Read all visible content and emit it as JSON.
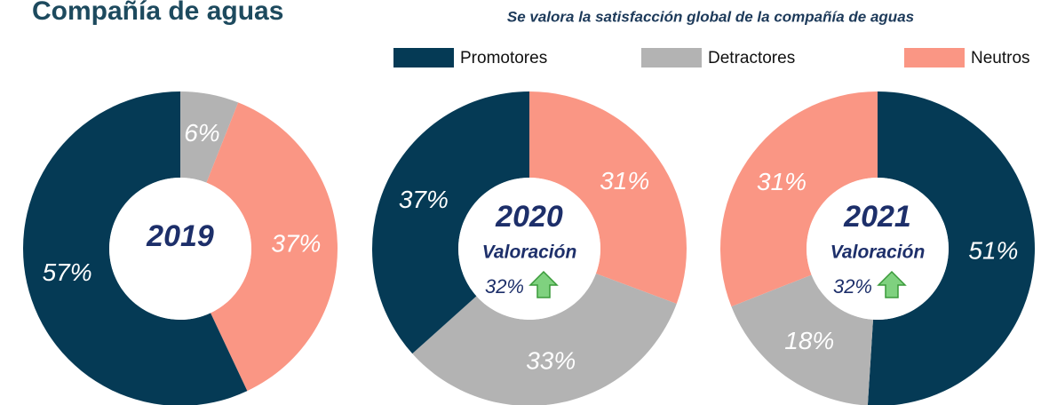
{
  "header": {
    "title": "Compañía de aguas",
    "subtitle": "Se valora la satisfacción global de la compañía de aguas"
  },
  "legend": [
    {
      "name": "Promotores",
      "color": "#053a55"
    },
    {
      "name": "Detractores",
      "color": "#b3b3b3"
    },
    {
      "name": "Neutros",
      "color": "#fa9684"
    }
  ],
  "chart_data": [
    {
      "type": "pie",
      "title": "2019",
      "categories": [
        "Detractores",
        "Neutros",
        "Promotores"
      ],
      "values": [
        6,
        37,
        57
      ],
      "value_labels": [
        "6%",
        "37%",
        "57%"
      ],
      "colors": [
        "#b3b3b3",
        "#fa9684",
        "#053a55"
      ]
    },
    {
      "type": "pie",
      "title": "2020",
      "categories": [
        "Neutros",
        "Detractores",
        "Promotores"
      ],
      "values": [
        31,
        33,
        37
      ],
      "value_labels": [
        "31%",
        "33%",
        "37%"
      ],
      "colors": [
        "#fa9684",
        "#b3b3b3",
        "#053a55"
      ],
      "center_label": "Valoración",
      "score": 32,
      "score_label": "32%"
    },
    {
      "type": "pie",
      "title": "2021",
      "categories": [
        "Promotores",
        "Detractores",
        "Neutros"
      ],
      "values": [
        51,
        18,
        31
      ],
      "value_labels": [
        "51%",
        "18%",
        "31%"
      ],
      "colors": [
        "#053a55",
        "#b3b3b3",
        "#fa9684"
      ],
      "center_label": "Valoración",
      "score": 32,
      "score_label": "32%"
    }
  ]
}
